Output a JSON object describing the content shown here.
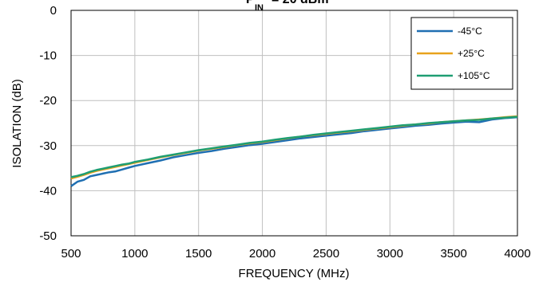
{
  "chart_data": {
    "type": "line",
    "title_fragment": "IN",
    "xlabel": "FREQUENCY (MHz)",
    "ylabel": "ISOLATION (dB)",
    "xlim": [
      500,
      4000
    ],
    "ylim": [
      -50,
      0
    ],
    "xticks": [
      500,
      1000,
      1500,
      2000,
      2500,
      3000,
      3500,
      4000
    ],
    "yticks": [
      0,
      -10,
      -20,
      -30,
      -40,
      -50
    ],
    "grid": true,
    "legend_position": "top-right",
    "series": [
      {
        "name": "-45°C",
        "color": "#1f6fb2",
        "x": [
          500,
          550,
          600,
          650,
          700,
          750,
          800,
          850,
          900,
          950,
          1000,
          1100,
          1200,
          1300,
          1400,
          1500,
          1600,
          1700,
          1800,
          1900,
          2000,
          2100,
          2200,
          2300,
          2400,
          2500,
          2600,
          2700,
          2800,
          2900,
          3000,
          3100,
          3200,
          3300,
          3400,
          3500,
          3600,
          3700,
          3800,
          3900,
          4000
        ],
        "y": [
          -39.0,
          -38.0,
          -37.6,
          -36.8,
          -36.5,
          -36.2,
          -35.9,
          -35.7,
          -35.3,
          -34.9,
          -34.5,
          -33.9,
          -33.3,
          -32.6,
          -32.1,
          -31.6,
          -31.2,
          -30.7,
          -30.3,
          -29.9,
          -29.6,
          -29.2,
          -28.8,
          -28.4,
          -28.1,
          -27.8,
          -27.5,
          -27.2,
          -26.8,
          -26.5,
          -26.2,
          -25.9,
          -25.6,
          -25.4,
          -25.1,
          -24.9,
          -24.7,
          -24.8,
          -24.2,
          -23.9,
          -23.7
        ]
      },
      {
        "name": "+25°C",
        "color": "#e8a21c",
        "x": [
          500,
          550,
          600,
          650,
          700,
          750,
          800,
          850,
          900,
          950,
          1000,
          1100,
          1200,
          1300,
          1400,
          1500,
          1600,
          1700,
          1800,
          1900,
          2000,
          2100,
          2200,
          2300,
          2400,
          2500,
          2600,
          2700,
          2800,
          2900,
          3000,
          3100,
          3200,
          3300,
          3400,
          3500,
          3600,
          3700,
          3800,
          3900,
          4000
        ],
        "y": [
          -37.3,
          -36.9,
          -36.5,
          -36.0,
          -35.6,
          -35.3,
          -35.0,
          -34.7,
          -34.4,
          -34.1,
          -33.8,
          -33.2,
          -32.6,
          -32.1,
          -31.6,
          -31.1,
          -30.7,
          -30.3,
          -29.9,
          -29.5,
          -29.2,
          -28.8,
          -28.4,
          -28.0,
          -27.7,
          -27.4,
          -27.1,
          -26.8,
          -26.5,
          -26.2,
          -25.9,
          -25.6,
          -25.3,
          -25.1,
          -24.8,
          -24.6,
          -24.4,
          -24.2,
          -24.0,
          -23.7,
          -23.5
        ]
      },
      {
        "name": "+105°C",
        "color": "#1e9e72",
        "x": [
          500,
          550,
          600,
          650,
          700,
          750,
          800,
          850,
          900,
          950,
          1000,
          1100,
          1200,
          1300,
          1400,
          1500,
          1600,
          1700,
          1800,
          1900,
          2000,
          2100,
          2200,
          2300,
          2400,
          2500,
          2600,
          2700,
          2800,
          2900,
          3000,
          3100,
          3200,
          3300,
          3400,
          3500,
          3600,
          3700,
          3800,
          3900,
          4000
        ],
        "y": [
          -37.0,
          -36.7,
          -36.3,
          -35.8,
          -35.4,
          -35.1,
          -34.8,
          -34.5,
          -34.2,
          -34.0,
          -33.6,
          -33.1,
          -32.5,
          -32.0,
          -31.5,
          -31.0,
          -30.6,
          -30.2,
          -29.8,
          -29.4,
          -29.1,
          -28.7,
          -28.3,
          -28.0,
          -27.6,
          -27.3,
          -27.0,
          -26.7,
          -26.4,
          -26.1,
          -25.8,
          -25.5,
          -25.3,
          -25.0,
          -24.8,
          -24.6,
          -24.4,
          -24.3,
          -24.0,
          -23.8,
          -23.6
        ]
      }
    ]
  }
}
